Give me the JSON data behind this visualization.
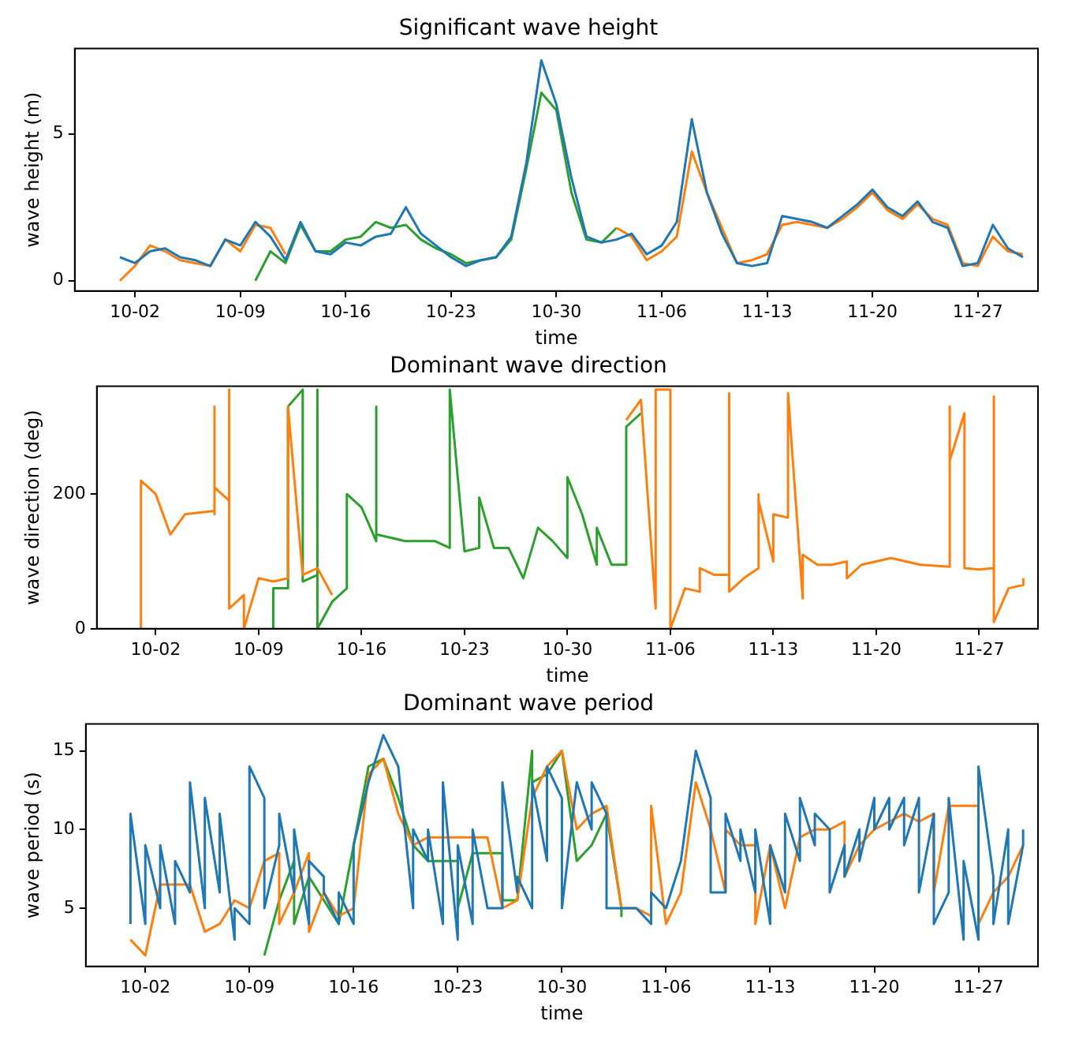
{
  "chart_data": [
    {
      "type": "line",
      "title": "Significant wave height",
      "xlabel": "time",
      "ylabel": "wave height (m)",
      "grid": false,
      "legend": false,
      "xlim": [
        "--09-28",
        "--12-01"
      ],
      "ylim": [
        -0.35,
        7.9
      ],
      "yticks": [
        0,
        5
      ],
      "xticks": [
        {
          "value": "--10-02",
          "label": "10-02"
        },
        {
          "value": "--10-09",
          "label": "10-09"
        },
        {
          "value": "--10-16",
          "label": "10-16"
        },
        {
          "value": "--10-23",
          "label": "10-23"
        },
        {
          "value": "--10-30",
          "label": "10-30"
        },
        {
          "value": "--11-06",
          "label": "11-06"
        },
        {
          "value": "--11-13",
          "label": "11-13"
        },
        {
          "value": "--11-20",
          "label": "11-20"
        },
        {
          "value": "--11-27",
          "label": "11-27"
        }
      ],
      "series": [
        {
          "color": "#1f77b4",
          "x": [
            "--10-01",
            "--10-02",
            "--10-03",
            "--10-04",
            "--10-05",
            "--10-06",
            "--10-07",
            "--10-08",
            "--10-09",
            "--10-10",
            "--10-11",
            "--10-12",
            "--10-13",
            "--10-14",
            "--10-15",
            "--10-16",
            "--10-17",
            "--10-18",
            "--10-19",
            "--10-20",
            "--10-21",
            "--10-22",
            "--10-23",
            "--10-24",
            "--10-25",
            "--10-26",
            "--10-27",
            "--10-28",
            "--10-29",
            "--10-30",
            "--10-31",
            "--11-01",
            "--11-02",
            "--11-03",
            "--11-04",
            "--11-05",
            "--11-06",
            "--11-07",
            "--11-08",
            "--11-09",
            "--11-10",
            "--11-11",
            "--11-12",
            "--11-13",
            "--11-14",
            "--11-15",
            "--11-16",
            "--11-17",
            "--11-18",
            "--11-19",
            "--11-20",
            "--11-21",
            "--11-22",
            "--11-23",
            "--11-24",
            "--11-25",
            "--11-26",
            "--11-27",
            "--11-28",
            "--11-29",
            "--11-30"
          ],
          "values": [
            0.8,
            0.6,
            1.0,
            1.1,
            0.8,
            0.7,
            0.5,
            1.4,
            1.2,
            2.0,
            1.5,
            0.7,
            2.0,
            1.0,
            0.9,
            1.3,
            1.2,
            1.5,
            1.6,
            2.5,
            1.6,
            1.2,
            0.8,
            0.5,
            0.7,
            0.8,
            1.5,
            4.0,
            7.5,
            6.0,
            3.5,
            1.5,
            1.3,
            1.4,
            1.6,
            0.9,
            1.2,
            2.0,
            5.5,
            3.0,
            1.6,
            0.6,
            0.5,
            0.6,
            2.2,
            2.1,
            2.0,
            1.8,
            2.2,
            2.6,
            3.1,
            2.5,
            2.2,
            2.7,
            2.0,
            1.8,
            0.5,
            0.6,
            1.9,
            1.1,
            0.8
          ]
        },
        {
          "color": "#ff7f0e",
          "x": [
            "--10-01",
            "--10-02",
            "--10-03",
            "--10-04",
            "--10-05",
            "--10-06",
            "--10-07",
            "--10-08",
            "--10-09",
            "--10-10",
            "--10-11",
            "--10-12",
            "--10-20",
            "--11-03",
            "--11-04",
            "--11-05",
            "--11-06",
            "--11-07",
            "--11-08",
            "--11-09",
            "--11-10",
            "--11-11",
            "--11-12",
            "--11-13",
            "--11-14",
            "--11-15",
            "--11-16",
            "--11-17",
            "--11-18",
            "--11-19",
            "--11-20",
            "--11-21",
            "--11-22",
            "--11-23",
            "--11-24",
            "--11-25",
            "--11-26",
            "--11-27",
            "--11-28",
            "--11-29",
            "--11-30"
          ],
          "values": [
            0.0,
            0.5,
            1.2,
            1.0,
            0.7,
            0.6,
            0.5,
            1.4,
            1.0,
            1.9,
            1.8,
            0.9,
            null,
            1.8,
            1.5,
            0.7,
            1.0,
            1.5,
            4.4,
            3.0,
            1.8,
            0.6,
            0.7,
            0.9,
            1.9,
            2.0,
            1.9,
            1.8,
            2.1,
            2.5,
            3.0,
            2.4,
            2.1,
            2.6,
            2.1,
            1.9,
            0.6,
            0.5,
            1.5,
            1.0,
            0.9
          ]
        },
        {
          "color": "#2ca02c",
          "x": [
            "--10-10",
            "--10-11",
            "--10-12",
            "--10-13",
            "--10-14",
            "--10-15",
            "--10-16",
            "--10-17",
            "--10-18",
            "--10-19",
            "--10-20",
            "--10-21",
            "--10-22",
            "--10-23",
            "--10-24",
            "--10-25",
            "--10-26",
            "--10-27",
            "--10-28",
            "--10-29",
            "--10-30",
            "--10-31",
            "--11-01",
            "--11-02",
            "--11-03"
          ],
          "values": [
            0.0,
            1.0,
            0.6,
            1.9,
            1.0,
            1.0,
            1.4,
            1.5,
            2.0,
            1.8,
            1.9,
            1.4,
            1.1,
            0.9,
            0.6,
            0.7,
            0.8,
            1.4,
            3.8,
            6.4,
            5.8,
            3.0,
            1.4,
            1.3,
            1.8
          ]
        }
      ]
    },
    {
      "type": "line",
      "title": "Dominant wave direction",
      "xlabel": "time",
      "ylabel": "wave direction (deg)",
      "grid": false,
      "legend": false,
      "xlim": [
        "--09-28",
        "--12-01"
      ],
      "ylim": [
        0,
        360
      ],
      "yticks": [
        0,
        200
      ],
      "xticks": [
        {
          "value": "--10-02",
          "label": "10-02"
        },
        {
          "value": "--10-09",
          "label": "10-09"
        },
        {
          "value": "--10-16",
          "label": "10-16"
        },
        {
          "value": "--10-23",
          "label": "10-23"
        },
        {
          "value": "--10-30",
          "label": "10-30"
        },
        {
          "value": "--11-06",
          "label": "11-06"
        },
        {
          "value": "--11-13",
          "label": "11-13"
        },
        {
          "value": "--11-20",
          "label": "11-20"
        },
        {
          "value": "--11-27",
          "label": "11-27"
        }
      ],
      "series": [
        {
          "color": "#ff7f0e",
          "x": [
            "--10-01",
            "--10-01",
            "--10-02",
            "--10-03",
            "--10-04",
            "--10-06",
            "--10-06",
            "--10-06",
            "--10-06",
            "--10-07",
            "--10-07",
            "--10-07",
            "--10-08",
            "--10-08",
            "--10-09",
            "--10-10",
            "--10-11",
            "--10-11",
            "--10-12",
            "--10-13",
            "--10-14",
            "--10-20",
            "--11-03",
            "--11-04",
            "--11-05",
            "--11-05",
            "--11-06",
            "--11-06",
            "--11-07",
            "--11-08",
            "--11-08",
            "--11-09",
            "--11-10",
            "--11-10",
            "--11-10",
            "--11-10",
            "--11-11",
            "--11-12",
            "--11-12",
            "--11-12",
            "--11-13",
            "--11-13",
            "--11-14",
            "--11-14",
            "--11-15",
            "--11-15",
            "--11-16",
            "--11-17",
            "--11-18",
            "--11-18",
            "--11-19",
            "--11-21",
            "--11-23",
            "--11-25",
            "--11-25",
            "--11-25",
            "--11-26",
            "--11-26",
            "--11-27",
            "--11-28",
            "--11-28",
            "--11-28",
            "--11-29",
            "--11-30",
            "--11-30"
          ],
          "values": [
            0,
            220,
            200,
            140,
            170,
            175,
            330,
            170,
            210,
            190,
            355,
            30,
            50,
            0,
            75,
            70,
            75,
            330,
            80,
            90,
            50,
            null,
            310,
            340,
            30,
            355,
            355,
            0,
            60,
            55,
            90,
            80,
            80,
            350,
            350,
            55,
            75,
            90,
            200,
            190,
            100,
            170,
            165,
            350,
            45,
            110,
            95,
            95,
            100,
            75,
            95,
            105,
            95,
            92,
            330,
            250,
            320,
            90,
            88,
            90,
            345,
            10,
            60,
            65,
            75
          ]
        },
        {
          "color": "#2ca02c",
          "x": [
            "--10-10",
            "--10-10",
            "--10-11",
            "--10-11",
            "--10-12",
            "--10-12",
            "--10-13",
            "--10-13",
            "--10-13",
            "--10-14",
            "--10-15",
            "--10-15",
            "--10-16",
            "--10-17",
            "--10-17",
            "--10-17",
            "--10-19",
            "--10-21",
            "--10-22",
            "--10-22",
            "--10-23",
            "--10-24",
            "--10-24",
            "--10-25",
            "--10-26",
            "--10-27",
            "--10-28",
            "--10-29",
            "--10-30",
            "--10-30",
            "--10-31",
            "--11-01",
            "--11-01",
            "--11-02",
            "--11-03",
            "--11-03",
            "--11-04"
          ],
          "values": [
            0,
            60,
            60,
            330,
            355,
            70,
            80,
            355,
            0,
            40,
            60,
            200,
            180,
            130,
            330,
            140,
            130,
            130,
            120,
            355,
            115,
            120,
            195,
            120,
            120,
            75,
            150,
            130,
            105,
            225,
            170,
            95,
            150,
            95,
            95,
            300,
            320
          ]
        }
      ]
    },
    {
      "type": "line",
      "title": "Dominant wave period",
      "xlabel": "time",
      "ylabel": "wave period (s)",
      "grid": false,
      "legend": false,
      "xlim": [
        "--09-28",
        "--12-01"
      ],
      "ylim": [
        1.3,
        16.7
      ],
      "yticks": [
        5,
        10,
        15
      ],
      "xticks": [
        {
          "value": "--10-02",
          "label": "10-02"
        },
        {
          "value": "--10-09",
          "label": "10-09"
        },
        {
          "value": "--10-16",
          "label": "10-16"
        },
        {
          "value": "--10-23",
          "label": "10-23"
        },
        {
          "value": "--10-30",
          "label": "10-30"
        },
        {
          "value": "--11-06",
          "label": "11-06"
        },
        {
          "value": "--11-13",
          "label": "11-13"
        },
        {
          "value": "--11-20",
          "label": "11-20"
        },
        {
          "value": "--11-27",
          "label": "11-27"
        }
      ],
      "series": [
        {
          "color": "#1f77b4",
          "x": [
            "--10-01",
            "--10-01",
            "--10-02",
            "--10-02",
            "--10-03",
            "--10-03",
            "--10-04",
            "--10-04",
            "--10-05",
            "--10-05",
            "--10-06",
            "--10-06",
            "--10-07",
            "--10-07",
            "--10-08",
            "--10-08",
            "--10-09",
            "--10-09",
            "--10-10",
            "--10-10",
            "--10-11",
            "--10-11",
            "--10-12",
            "--10-12",
            "--10-13",
            "--10-13",
            "--10-14",
            "--10-14",
            "--10-15",
            "--10-15",
            "--10-16",
            "--10-16",
            "--10-17",
            "--10-18",
            "--10-19",
            "--10-20",
            "--10-20",
            "--10-21",
            "--10-21",
            "--10-22",
            "--10-22",
            "--10-23",
            "--10-23",
            "--10-24",
            "--10-24",
            "--10-25",
            "--10-26",
            "--10-26",
            "--10-27",
            "--10-27",
            "--10-28",
            "--10-28",
            "--10-29",
            "--10-29",
            "--10-30",
            "--10-30",
            "--10-31",
            "--11-01",
            "--11-01",
            "--11-02",
            "--11-02",
            "--11-03",
            "--11-04",
            "--11-05",
            "--11-05",
            "--11-06",
            "--11-07",
            "--11-08",
            "--11-09",
            "--11-09",
            "--11-10",
            "--11-10",
            "--11-11",
            "--11-11",
            "--11-12",
            "--11-12",
            "--11-13",
            "--11-13",
            "--11-14",
            "--11-14",
            "--11-15",
            "--11-15",
            "--11-16",
            "--11-16",
            "--11-17",
            "--11-17",
            "--11-18",
            "--11-18",
            "--11-19",
            "--11-19",
            "--11-20",
            "--11-20",
            "--11-21",
            "--11-21",
            "--11-22",
            "--11-22",
            "--11-23",
            "--11-23",
            "--11-24",
            "--11-24",
            "--11-25",
            "--11-25",
            "--11-26",
            "--11-26",
            "--11-27",
            "--11-27",
            "--11-28",
            "--11-28",
            "--11-29",
            "--11-29",
            "--11-30",
            "--11-30"
          ],
          "values": [
            4,
            11,
            4,
            9,
            5,
            9,
            4,
            8,
            6,
            13,
            5,
            12,
            6,
            11,
            3,
            5,
            4,
            14,
            12,
            5,
            9,
            11,
            6,
            10,
            4,
            8,
            7,
            6,
            4,
            6,
            4,
            9,
            13,
            16,
            14,
            5,
            10,
            8,
            10,
            4,
            13,
            3,
            9,
            4,
            10,
            5,
            5,
            13,
            6,
            7,
            5,
            13,
            8,
            14,
            12,
            5,
            13,
            10,
            13,
            11,
            5,
            5,
            5,
            4,
            6,
            5,
            8,
            15,
            12,
            6,
            6,
            11,
            8,
            10,
            6,
            10,
            4,
            9,
            6,
            11,
            8,
            12,
            9,
            11,
            10,
            6,
            9,
            7,
            10,
            8,
            12,
            10,
            12,
            10,
            12,
            9,
            12,
            6,
            11,
            4,
            6,
            12,
            3,
            8,
            3,
            14,
            7,
            4,
            10,
            4,
            9,
            10
          ]
        },
        {
          "color": "#ff7f0e",
          "x": [
            "--10-01",
            "--10-02",
            "--10-03",
            "--10-05",
            "--10-06",
            "--10-07",
            "--10-08",
            "--10-09",
            "--10-10",
            "--10-11",
            "--10-11",
            "--10-12",
            "--10-13",
            "--10-13",
            "--10-14",
            "--10-15",
            "--10-16",
            "--10-17",
            "--10-18",
            "--10-19",
            "--10-20",
            "--10-21",
            "--10-22",
            "--10-24",
            "--10-25",
            "--10-26",
            "--10-27",
            "--10-28",
            "--10-29",
            "--10-30",
            "--10-31",
            "--11-01",
            "--11-02",
            "--11-03",
            "--11-04",
            "--11-05",
            "--11-05",
            "--11-06",
            "--11-07",
            "--11-08",
            "--11-09",
            "--11-10",
            "--11-10",
            "--11-11",
            "--11-12",
            "--11-12",
            "--11-13",
            "--11-14",
            "--11-15",
            "--11-16",
            "--11-17",
            "--11-18",
            "--11-18",
            "--11-19",
            "--11-20",
            "--11-21",
            "--11-22",
            "--11-23",
            "--11-24",
            "--11-24",
            "--11-25",
            "--11-27",
            "--11-27",
            "--11-28",
            "--11-29",
            "--11-30"
          ],
          "values": [
            3,
            2,
            6.5,
            6.5,
            3.5,
            4,
            5.5,
            5,
            8,
            8.5,
            4,
            6,
            8.5,
            3.5,
            6,
            4.5,
            5,
            13.5,
            14.5,
            11,
            9,
            9.5,
            9.5,
            9.5,
            9.5,
            5,
            5.5,
            12,
            14,
            15,
            10,
            11,
            11.5,
            5,
            5,
            4.5,
            11.5,
            4,
            6,
            13,
            10,
            6,
            10,
            9,
            9,
            4,
            9,
            5,
            9.5,
            10,
            10,
            10.5,
            7,
            9,
            10,
            10.5,
            11,
            10.5,
            11,
            6,
            11.5,
            11.5,
            4,
            6,
            7,
            9
          ]
        },
        {
          "color": "#2ca02c",
          "x": [
            "--10-10",
            "--10-11",
            "--10-12",
            "--10-12",
            "--10-13",
            "--10-14",
            "--10-15",
            "--10-16",
            "--10-17",
            "--10-18",
            "--10-19",
            "--10-20",
            "--10-21",
            "--10-22",
            "--10-23",
            "--10-23",
            "--10-24",
            "--10-26",
            "--10-26",
            "--10-27",
            "--10-28",
            "--10-28",
            "--10-29",
            "--10-30",
            "--10-31",
            "--11-01",
            "--11-02",
            "--11-03",
            "--11-03"
          ],
          "values": [
            2,
            5.5,
            8,
            4,
            7,
            5.5,
            4,
            9,
            14,
            14.5,
            12,
            9,
            8,
            8,
            8,
            5,
            8.5,
            8.5,
            5.5,
            5.5,
            15,
            13,
            13.5,
            15,
            8,
            9,
            11,
            5,
            4.5
          ]
        }
      ]
    }
  ]
}
